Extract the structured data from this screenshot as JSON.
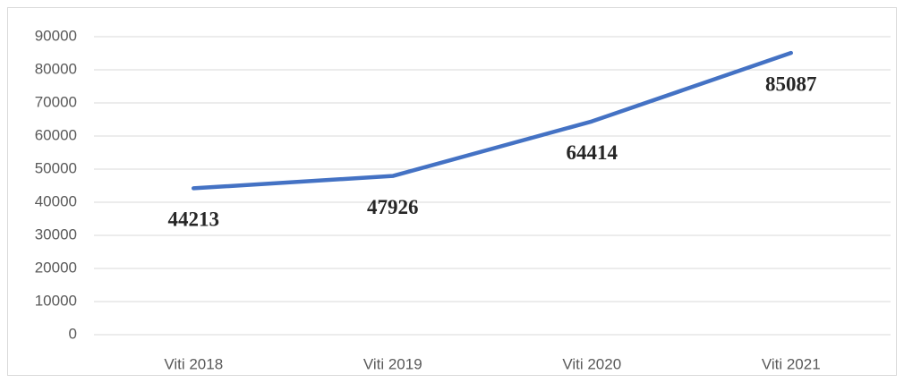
{
  "chart_data": {
    "type": "line",
    "categories": [
      "Viti 2018",
      "Viti 2019",
      "Viti 2020",
      "Viti 2021"
    ],
    "series": [
      {
        "name": "Viti",
        "color": "#4472c4",
        "values": [
          44213,
          47926,
          64414,
          85087
        ]
      }
    ],
    "ylim": [
      0,
      90000
    ],
    "yticks": [
      0,
      10000,
      20000,
      30000,
      40000,
      50000,
      60000,
      70000,
      80000,
      90000
    ],
    "grid": true
  }
}
